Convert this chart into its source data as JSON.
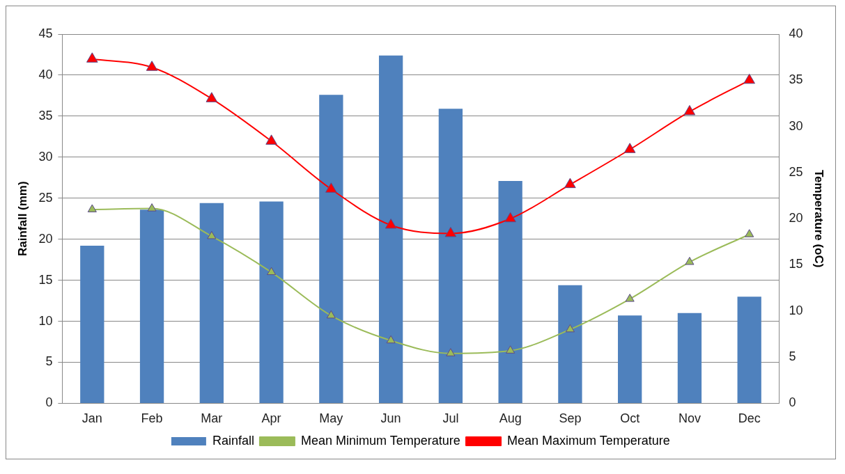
{
  "chart_data": {
    "type": "bar",
    "ylabel": "Rainfall (mm)",
    "y2label": "Temperature (oC)",
    "categories": [
      "Jan",
      "Feb",
      "Mar",
      "Apr",
      "May",
      "Jun",
      "Jul",
      "Aug",
      "Sep",
      "Oct",
      "Nov",
      "Dec"
    ],
    "series": [
      {
        "name": "Rainfall",
        "color": "#4f81bd",
        "values": [
          19.2,
          23.6,
          24.4,
          24.6,
          37.6,
          42.4,
          35.9,
          27.1,
          14.4,
          10.7,
          11.0,
          13.0
        ]
      },
      {
        "name": "Mean Minimum Temperature",
        "type": "line",
        "axis": "y2",
        "color": "#9bbb59",
        "marker": "triangle",
        "values": [
          21.0,
          21.1,
          18.1,
          14.2,
          9.5,
          6.8,
          5.4,
          5.7,
          8.0,
          11.3,
          15.3,
          18.3
        ]
      },
      {
        "name": "Mean Maximum Temperature",
        "type": "line",
        "axis": "y2",
        "color": "#ff0000",
        "marker": "triangle",
        "values": [
          37.3,
          36.4,
          33.0,
          28.4,
          23.2,
          19.3,
          18.4,
          20.0,
          23.7,
          27.5,
          31.6,
          35.0
        ]
      }
    ],
    "ylim": [
      0,
      45
    ],
    "yticks": [
      0,
      5,
      10,
      15,
      20,
      25,
      30,
      35,
      40,
      45
    ],
    "y2lim": [
      0,
      40
    ],
    "y2ticks": [
      0,
      5,
      10,
      15,
      20,
      25,
      30,
      35,
      40
    ],
    "grid": "y",
    "legend": "bottom"
  }
}
